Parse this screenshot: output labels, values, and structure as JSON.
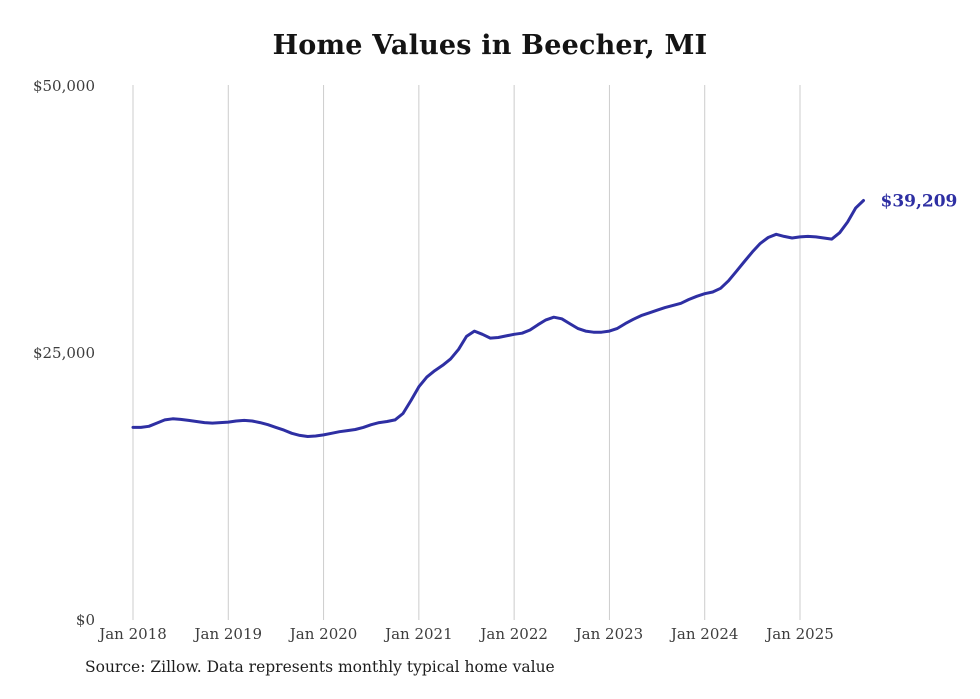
{
  "page": {
    "title": "Home Values in Beecher, MI",
    "source_note": "Source: Zillow. Data represents monthly typical home value"
  },
  "chart_data": {
    "type": "line",
    "title": "Home Values in Beecher, MI",
    "series_name": "Typical home value (monthly)",
    "xlabel": "",
    "ylabel": "",
    "ylim": [
      0,
      50000
    ],
    "grid": "vertical-only",
    "legend": "none",
    "line_color": "#2e2fa3",
    "grid_color": "#cccccc",
    "end_label": "$39,209",
    "end_value": 39209,
    "y_tick_labels": [
      "$0",
      "$25,000",
      "$50,000"
    ],
    "y_tick_values": [
      0,
      25000,
      50000
    ],
    "x_tick_labels": [
      "Jan 2018",
      "Jan 2019",
      "Jan 2020",
      "Jan 2021",
      "Jan 2022",
      "Jan 2023",
      "Jan 2024",
      "Jan 2025"
    ],
    "x": [
      "2018-01",
      "2018-02",
      "2018-03",
      "2018-04",
      "2018-05",
      "2018-06",
      "2018-07",
      "2018-08",
      "2018-09",
      "2018-10",
      "2018-11",
      "2018-12",
      "2019-01",
      "2019-02",
      "2019-03",
      "2019-04",
      "2019-05",
      "2019-06",
      "2019-07",
      "2019-08",
      "2019-09",
      "2019-10",
      "2019-11",
      "2019-12",
      "2020-01",
      "2020-02",
      "2020-03",
      "2020-04",
      "2020-05",
      "2020-06",
      "2020-07",
      "2020-08",
      "2020-09",
      "2020-10",
      "2020-11",
      "2020-12",
      "2021-01",
      "2021-02",
      "2021-03",
      "2021-04",
      "2021-05",
      "2021-06",
      "2021-07",
      "2021-08",
      "2021-09",
      "2021-10",
      "2021-11",
      "2021-12",
      "2022-01",
      "2022-02",
      "2022-03",
      "2022-04",
      "2022-05",
      "2022-06",
      "2022-07",
      "2022-08",
      "2022-09",
      "2022-10",
      "2022-11",
      "2022-12",
      "2023-01",
      "2023-02",
      "2023-03",
      "2023-04",
      "2023-05",
      "2023-06",
      "2023-07",
      "2023-08",
      "2023-09",
      "2023-10",
      "2023-11",
      "2023-12",
      "2024-01",
      "2024-02",
      "2024-03",
      "2024-04",
      "2024-05",
      "2024-06",
      "2024-07",
      "2024-08",
      "2024-09",
      "2024-10",
      "2024-11",
      "2024-12",
      "2025-01",
      "2025-02",
      "2025-03",
      "2025-04",
      "2025-05",
      "2025-06",
      "2025-07",
      "2025-08",
      "2025-09"
    ],
    "values": [
      18000,
      18000,
      18100,
      18400,
      18700,
      18800,
      18750,
      18650,
      18550,
      18450,
      18400,
      18450,
      18500,
      18600,
      18650,
      18600,
      18450,
      18250,
      18000,
      17750,
      17450,
      17250,
      17150,
      17200,
      17300,
      17450,
      17600,
      17700,
      17800,
      18000,
      18250,
      18450,
      18550,
      18700,
      19300,
      20500,
      21800,
      22700,
      23300,
      23800,
      24400,
      25300,
      26500,
      27000,
      26700,
      26350,
      26400,
      26550,
      26700,
      26800,
      27100,
      27600,
      28050,
      28300,
      28150,
      27700,
      27250,
      27000,
      26900,
      26900,
      27000,
      27250,
      27700,
      28100,
      28450,
      28700,
      28950,
      29200,
      29400,
      29600,
      29950,
      30250,
      30500,
      30650,
      31000,
      31700,
      32600,
      33500,
      34400,
      35200,
      35750,
      36050,
      35850,
      35700,
      35800,
      35850,
      35800,
      35700,
      35600,
      36200,
      37200,
      38500,
      39209
    ]
  }
}
